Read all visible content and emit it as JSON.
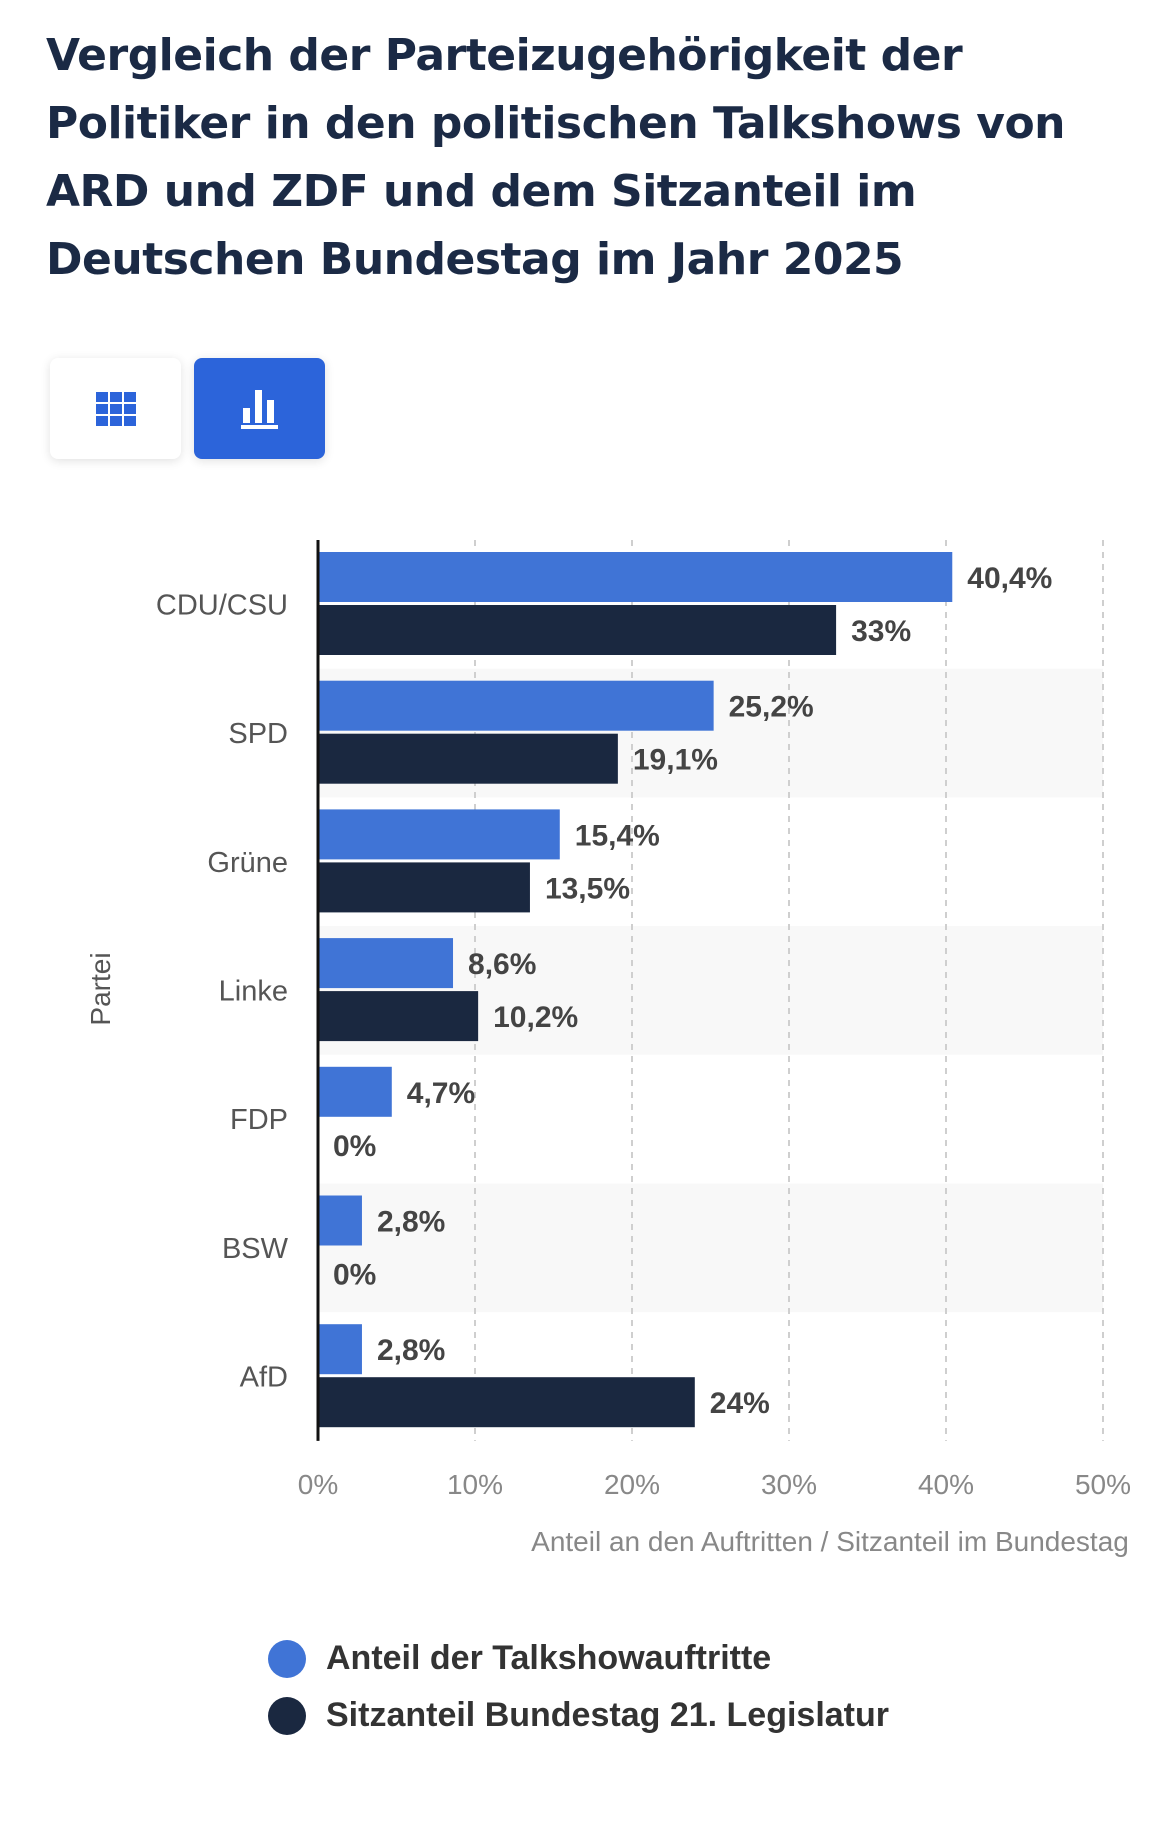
{
  "title": "Vergleich der Parteizugehörigkeit der Politiker in den politischen Talkshows von ARD und ZDF und dem Sitzanteil im Deutschen Bundestag im Jahr 2025",
  "view_toggle": {
    "table_icon": "table-grid-icon",
    "chart_icon": "bar-chart-icon",
    "active": "chart"
  },
  "colors": {
    "series1": "#4074d6",
    "series2": "#1a2840",
    "accent": "#2c64da"
  },
  "chart_data": {
    "type": "bar",
    "orientation": "horizontal",
    "categories": [
      "CDU/CSU",
      "SPD",
      "Grüne",
      "Linke",
      "FDP",
      "BSW",
      "AfD"
    ],
    "series": [
      {
        "name": "Anteil der Talkshowauftritte",
        "values": [
          40.4,
          25.2,
          15.4,
          8.6,
          4.7,
          2.8,
          2.8
        ],
        "labels": [
          "40,4%",
          "25,2%",
          "15,4%",
          "8,6%",
          "4,7%",
          "2,8%",
          "2,8%"
        ]
      },
      {
        "name": "Sitzanteil Bundestag 21. Legislatur",
        "values": [
          33,
          19.1,
          13.5,
          10.2,
          0,
          0,
          24
        ],
        "labels": [
          "33%",
          "19,1%",
          "13,5%",
          "10,2%",
          "0%",
          "0%",
          "24%"
        ]
      }
    ],
    "xlim": [
      0,
      50
    ],
    "xticks": [
      "0%",
      "10%",
      "20%",
      "30%",
      "40%",
      "50%"
    ],
    "xlabel": "Anteil an den Auftritten / Sitzanteil im Bundestag",
    "ylabel": "Partei",
    "grid": "vertical dashed",
    "legend_position": "bottom"
  }
}
